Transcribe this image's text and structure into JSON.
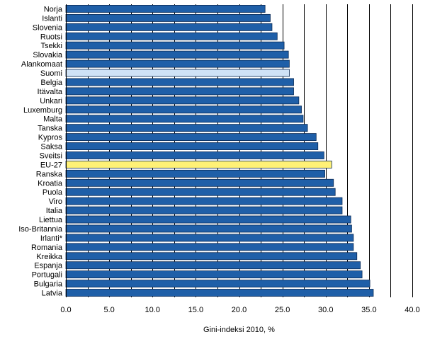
{
  "chart_data": {
    "type": "bar",
    "orientation": "horizontal",
    "title": "",
    "xlabel": "Gini-indeksi 2010, %",
    "ylabel": "",
    "xlim": [
      0,
      40
    ],
    "x_tick_step": 2.5,
    "x_tick_labels": [
      "0.0",
      "5.0",
      "10.0",
      "15.0",
      "20.0",
      "25.0",
      "30.0",
      "35.0",
      "40.0"
    ],
    "grid": "vertical lines every 2.5",
    "legend": "none",
    "categories": [
      "Norja",
      "Islanti",
      "Slovenia",
      "Ruotsi",
      "Tsekki",
      "Slovakia",
      "Alankomaat",
      "Suomi",
      "Belgia",
      "Itävalta",
      "Unkari",
      "Luxemburg",
      "Malta",
      "Tanska",
      "Kypros",
      "Saksa",
      "Sveitsi",
      "EU-27",
      "Ranska",
      "Kroatia",
      "Puola",
      "Viro",
      "Italia",
      "Liettua",
      "Iso-Britannia",
      "Irlanti*",
      "Romania",
      "Kreikka",
      "Espanja",
      "Portugali",
      "Bulgaria",
      "Latvia"
    ],
    "values": [
      23.0,
      23.6,
      23.8,
      24.4,
      25.2,
      25.7,
      25.8,
      25.8,
      26.3,
      26.3,
      26.9,
      27.2,
      27.4,
      27.9,
      28.9,
      29.1,
      29.8,
      30.7,
      29.9,
      30.9,
      31.1,
      31.9,
      31.9,
      32.9,
      33.0,
      33.2,
      33.2,
      33.6,
      34.0,
      34.2,
      35.1,
      35.5
    ],
    "colors": {
      "default": "#1f5fa8",
      "highlight": "#cfe2f6",
      "eu": "#fff176",
      "bar_edge": "#0a2a55",
      "grid": "#000000"
    },
    "highlight_categories": {
      "Suomi": "highlight",
      "EU-27": "eu"
    }
  }
}
